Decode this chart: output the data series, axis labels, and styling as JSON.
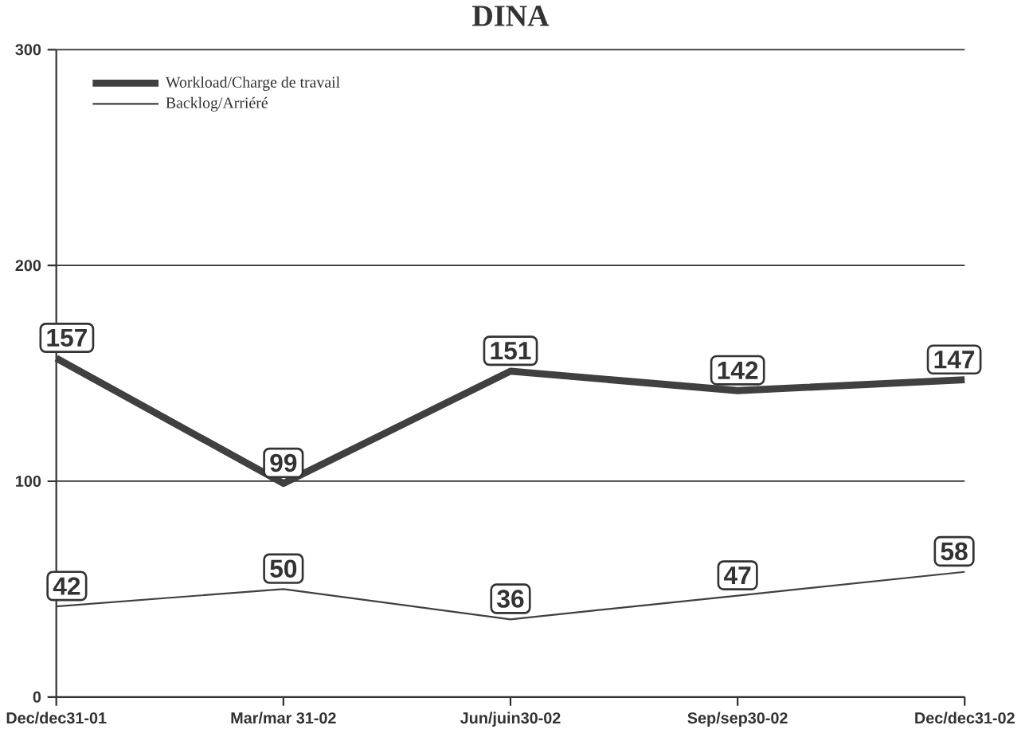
{
  "chart_data": {
    "type": "line",
    "title": "DINA",
    "categories": [
      "Dec/dec31-01",
      "Mar/mar 31-02",
      "Jun/juin30-02",
      "Sep/sep30-02",
      "Dec/dec31-02"
    ],
    "series": [
      {
        "name": "Workload/Charge de travail",
        "color": "#404040",
        "values": [
          157,
          99,
          151,
          142,
          147
        ]
      },
      {
        "name": "Backlog/Arriéré",
        "color": "#404040",
        "values": [
          42,
          50,
          36,
          47,
          58
        ]
      }
    ],
    "ylim": [
      0,
      300
    ],
    "yticks": [
      0,
      100,
      200,
      300
    ],
    "grid": "y",
    "legend": "top left",
    "data_labels": true,
    "line_style": "solid"
  }
}
